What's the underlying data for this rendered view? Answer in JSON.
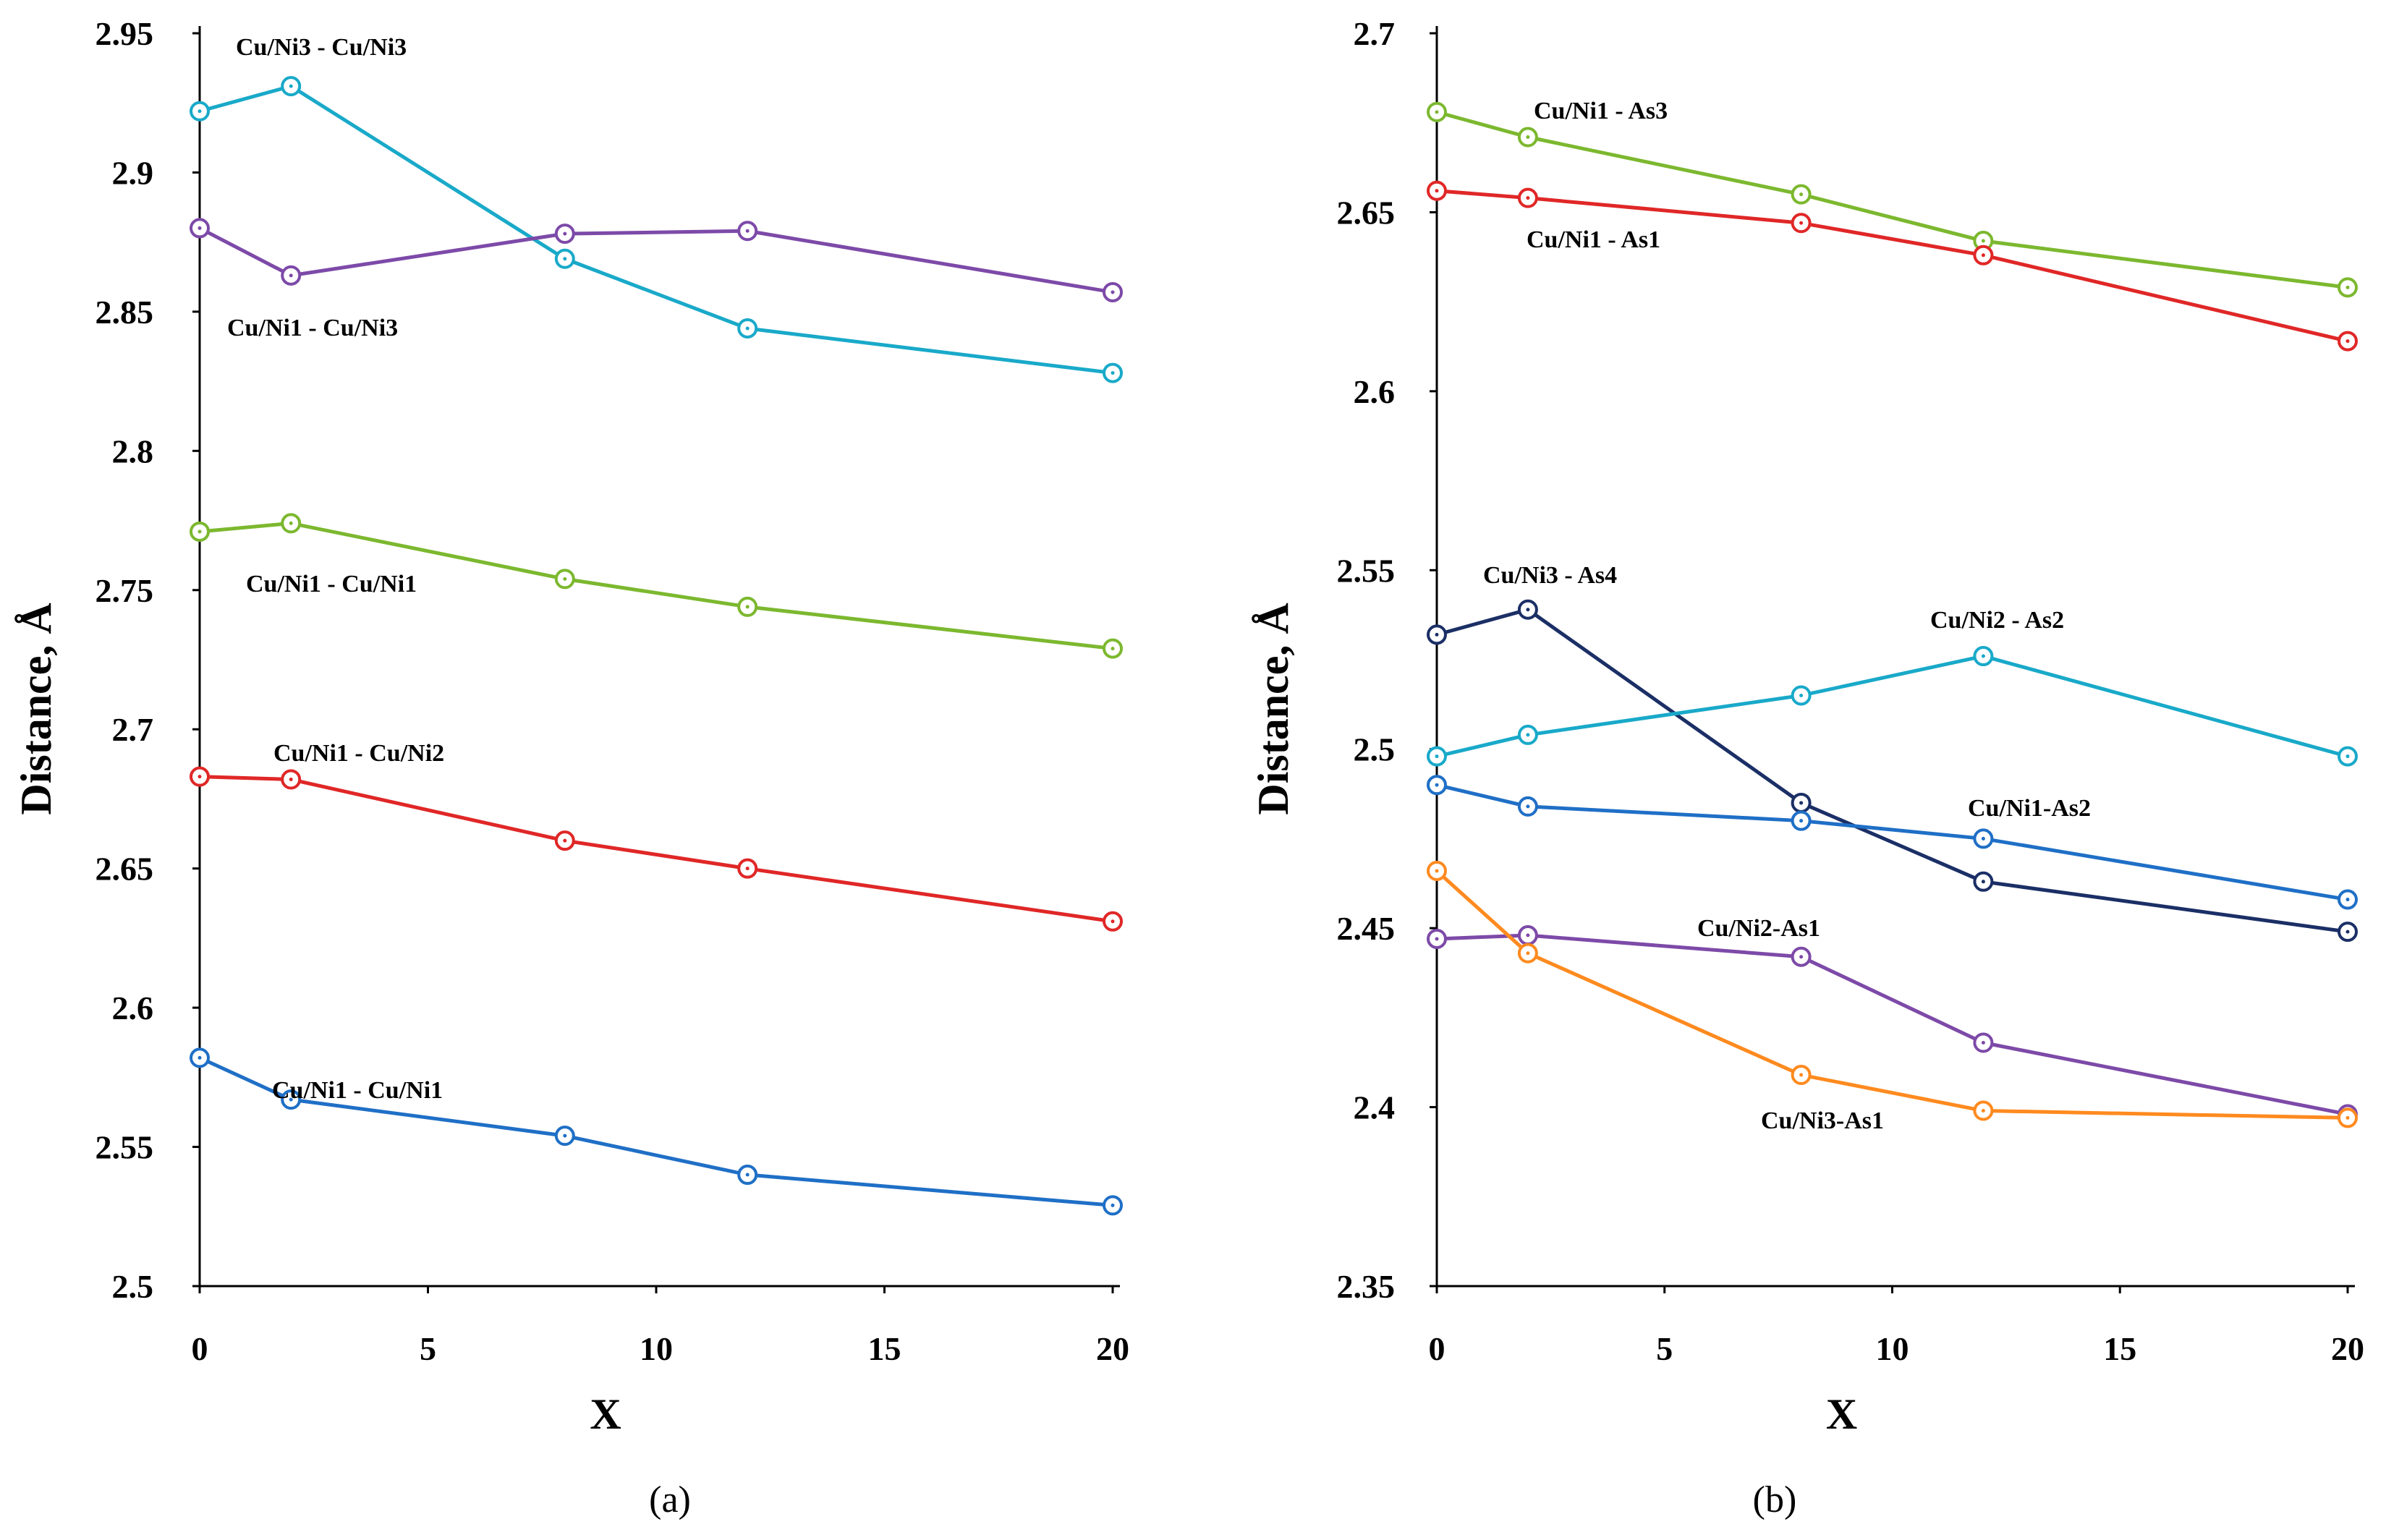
{
  "chart_data": [
    {
      "panel_label": "(a)",
      "type": "line",
      "xlabel": "X",
      "ylabel": "Distance, Å",
      "xlim": [
        0,
        20
      ],
      "ylim": [
        2.5,
        2.95
      ],
      "xticks": [
        "0",
        "5",
        "10",
        "15",
        "20"
      ],
      "yticks": [
        "2.5",
        "2.55",
        "2.6",
        "2.65",
        "2.7",
        "2.75",
        "2.8",
        "2.85",
        "2.9",
        "2.95"
      ],
      "x": [
        0,
        2,
        8,
        12,
        20
      ],
      "series": [
        {
          "name": "Cu/Ni3 - Cu/Ni3",
          "color": "#19a9c9",
          "values": [
            2.922,
            2.931,
            2.869,
            2.844,
            2.828
          ]
        },
        {
          "name": "Cu/Ni1 - Cu/Ni3",
          "color": "#7d4aa8",
          "values": [
            2.88,
            2.863,
            2.878,
            2.879,
            2.857
          ]
        },
        {
          "name": "Cu/Ni1 - Cu/Ni1",
          "color": "#7cb82f",
          "values": [
            2.771,
            2.774,
            2.754,
            2.744,
            2.729
          ]
        },
        {
          "name": "Cu/Ni1 - Cu/Ni2",
          "color": "#e02727",
          "values": [
            2.683,
            2.682,
            2.66,
            2.65,
            2.631
          ]
        },
        {
          "name": "Cu/Ni1 - Cu/Ni1",
          "color": "#1f6fc6",
          "values": [
            2.582,
            2.567,
            2.554,
            2.54,
            2.529
          ]
        }
      ]
    },
    {
      "panel_label": "(b)",
      "type": "line",
      "xlabel": "X",
      "ylabel": "Distance, Å",
      "xlim": [
        0,
        20
      ],
      "ylim": [
        2.35,
        2.7
      ],
      "xticks": [
        "0",
        "5",
        "10",
        "15",
        "20"
      ],
      "yticks": [
        "2.35",
        "2.4",
        "2.45",
        "2.5",
        "2.55",
        "2.6",
        "2.65",
        "2.7"
      ],
      "x": [
        0,
        2,
        8,
        12,
        20
      ],
      "series": [
        {
          "name": "Cu/Ni1 - As3",
          "color": "#7cb82f",
          "values": [
            2.678,
            2.671,
            2.655,
            2.642,
            2.629
          ]
        },
        {
          "name": "Cu/Ni1 - As1",
          "color": "#e02727",
          "values": [
            2.656,
            2.654,
            2.647,
            2.638,
            2.614
          ]
        },
        {
          "name": "Cu/Ni3 - As4",
          "color": "#1b2f66",
          "values": [
            2.532,
            2.539,
            2.485,
            2.463,
            2.449
          ]
        },
        {
          "name": "Cu/Ni2 - As2",
          "color": "#19a9c9",
          "values": [
            2.498,
            2.504,
            2.515,
            2.526,
            2.498
          ]
        },
        {
          "name": "Cu/Ni1-As2",
          "color": "#1f6fc6",
          "values": [
            2.49,
            2.484,
            2.48,
            2.475,
            2.458
          ]
        },
        {
          "name": "Cu/Ni2-As1",
          "color": "#7d4aa8",
          "values": [
            2.447,
            2.448,
            2.442,
            2.418,
            2.398
          ]
        },
        {
          "name": "Cu/Ni3-As1",
          "color": "#ff8a1f",
          "values": [
            2.466,
            2.443,
            2.409,
            2.399,
            2.397
          ]
        }
      ]
    }
  ]
}
